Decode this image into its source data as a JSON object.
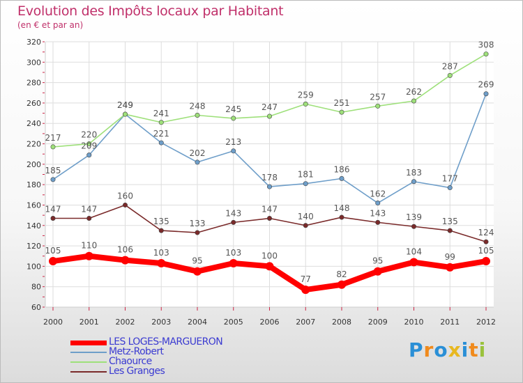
{
  "header": {
    "title": "Evolution des Impôts locaux par Habitant",
    "subtitle": "(en € et par an)"
  },
  "brand": {
    "logo_text": "Proxiti",
    "letters": [
      "P",
      "r",
      "o",
      "x",
      "i",
      "t",
      "i"
    ],
    "letter_colors": [
      "#2a8fd6",
      "#f08a1c",
      "#2a8fd6",
      "#e8b820",
      "#2a8fd6",
      "#f08a1c",
      "#9ac23c"
    ]
  },
  "chart_data": {
    "type": "line",
    "title": "Evolution des Impôts locaux par Habitant",
    "subtitle": "(en € et par an)",
    "xlabel": "",
    "ylabel": "",
    "x": [
      "2000",
      "2001",
      "2002",
      "2003",
      "2004",
      "2005",
      "2006",
      "2007",
      "2008",
      "2009",
      "2010",
      "2011",
      "2012"
    ],
    "ylim": [
      60,
      320
    ],
    "yticks": [
      "60",
      "80",
      "100",
      "120",
      "140",
      "160",
      "180",
      "200",
      "220",
      "240",
      "260",
      "280",
      "300",
      "320"
    ],
    "grid": true,
    "legend_position": "bottom-left",
    "series": [
      {
        "name": "LES LOGES-MARGUERON",
        "color": "#ff0000",
        "values": [
          105,
          110,
          106,
          103,
          95,
          103,
          100,
          77,
          82,
          95,
          104,
          99,
          105
        ],
        "labels": [
          "105",
          "110",
          "106",
          "103",
          "95",
          "103",
          "100",
          "77",
          "82",
          "95",
          "104",
          "99",
          "105"
        ]
      },
      {
        "name": "Metz-Robert",
        "color": "#6e9ec9",
        "values": [
          185,
          209,
          249,
          221,
          202,
          213,
          178,
          181,
          186,
          162,
          183,
          177,
          269
        ],
        "labels": [
          "185",
          "209",
          "249",
          "221",
          "202",
          "213",
          "178",
          "181",
          "186",
          "162",
          "183",
          "177",
          "269"
        ]
      },
      {
        "name": "Chaource",
        "color": "#9ee07a",
        "values": [
          217,
          220,
          249,
          241,
          248,
          245,
          247,
          259,
          251,
          257,
          262,
          287,
          308
        ],
        "labels": [
          "217",
          "220",
          "249",
          "241",
          "248",
          "245",
          "247",
          "259",
          "251",
          "257",
          "262",
          "287",
          "308"
        ]
      },
      {
        "name": "Les Granges",
        "color": "#7a2a2a",
        "values": [
          147,
          147,
          160,
          135,
          133,
          143,
          147,
          140,
          148,
          143,
          139,
          135,
          124
        ],
        "labels": [
          "147",
          "147",
          "160",
          "135",
          "133",
          "143",
          "147",
          "140",
          "148",
          "143",
          "139",
          "135",
          "124"
        ]
      }
    ]
  }
}
